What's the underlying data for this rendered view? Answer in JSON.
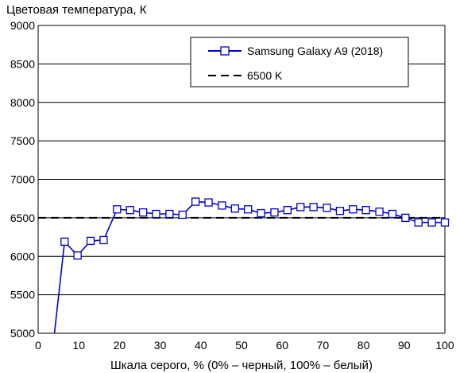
{
  "chart_data": {
    "type": "line",
    "ylabel": "Цветовая температура, К",
    "xlabel": "Шкала серого, % (0% – черный, 100% – белый)",
    "xlim": [
      0,
      100
    ],
    "ylim": [
      5000,
      9000
    ],
    "xticks": [
      0,
      10,
      20,
      30,
      40,
      50,
      60,
      70,
      80,
      90,
      100
    ],
    "yticks": [
      5000,
      5500,
      6000,
      6500,
      7000,
      7500,
      8000,
      8500,
      9000
    ],
    "grid": true,
    "legend_position": "top-right",
    "series": [
      {
        "name": "Samsung Galaxy A9 (2018)",
        "color": "#0000cc",
        "marker": "square",
        "x": [
          3.9,
          6.5,
          9.7,
          12.9,
          16.1,
          19.4,
          22.6,
          25.8,
          29.0,
          32.3,
          35.5,
          38.7,
          41.9,
          45.2,
          48.4,
          51.6,
          54.8,
          58.1,
          61.3,
          64.5,
          67.7,
          71.0,
          74.2,
          77.4,
          80.6,
          83.9,
          87.1,
          90.3,
          93.5,
          96.8,
          100
        ],
        "y": [
          4950,
          6190,
          6010,
          6200,
          6210,
          6610,
          6600,
          6570,
          6550,
          6550,
          6540,
          6710,
          6700,
          6660,
          6620,
          6610,
          6560,
          6570,
          6600,
          6640,
          6640,
          6630,
          6590,
          6610,
          6600,
          6580,
          6550,
          6500,
          6440,
          6440,
          6440
        ]
      },
      {
        "name": "6500 K",
        "color": "#000000",
        "style": "dashed",
        "x": [
          0,
          100
        ],
        "y": [
          6500,
          6500
        ]
      }
    ]
  }
}
